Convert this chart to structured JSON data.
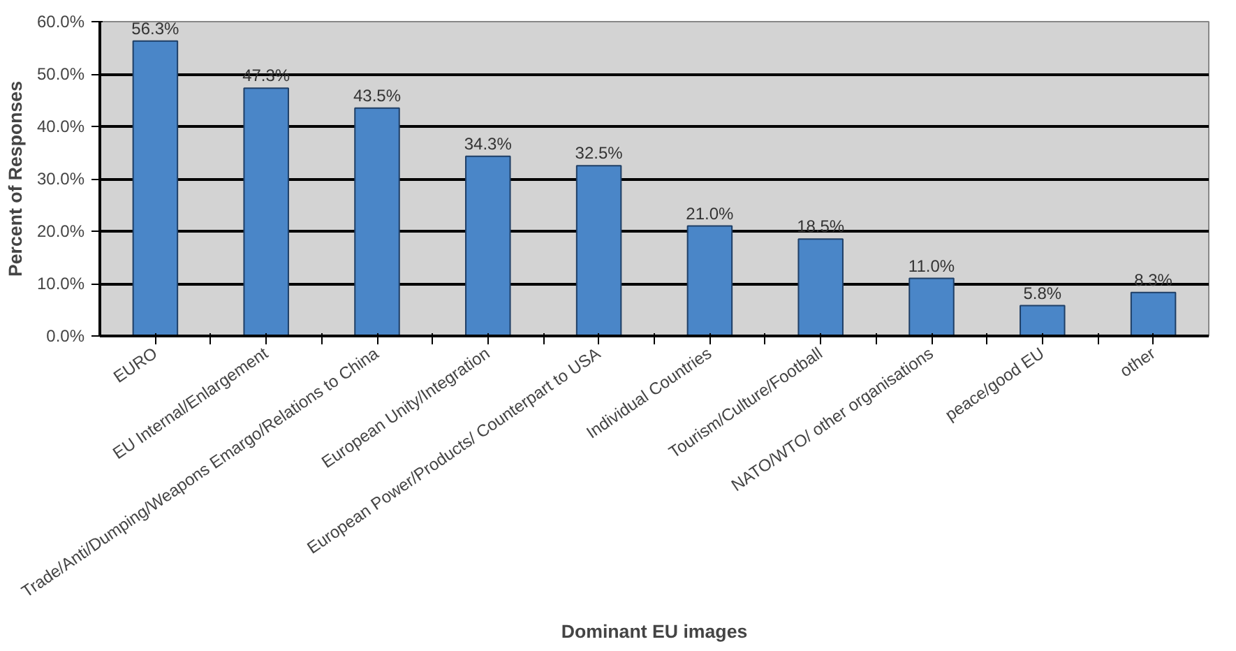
{
  "chart_data": {
    "type": "bar",
    "xlabel": "Dominant EU images",
    "ylabel": "Percent of Responses",
    "categories": [
      "EURO",
      "EU Internal/Enlargement",
      "Trade/Anti/Dumping/Weapons Emargo/Relations to China",
      "European Unity/Integration",
      "European Power/Products/ Counterpart to USA",
      "Individual Countries",
      "Tourism/Culture/Football",
      "NATO/WTO/ other organisations",
      "peace/good EU",
      "other"
    ],
    "values": [
      56.3,
      47.3,
      43.5,
      34.3,
      32.5,
      21.0,
      18.5,
      11.0,
      5.8,
      8.3
    ],
    "value_labels": [
      "56.3%",
      "47.3%",
      "43.5%",
      "34.3%",
      "32.5%",
      "21.0%",
      "18.5%",
      "11.0%",
      "5.8%",
      "8.3%"
    ],
    "color": "#4a86c8",
    "ylim": [
      0,
      60
    ],
    "yticks": [
      {
        "value": 0,
        "label": "0.0%"
      },
      {
        "value": 10,
        "label": "10.0%"
      },
      {
        "value": 20,
        "label": "20.0%"
      },
      {
        "value": 30,
        "label": "30.0%"
      },
      {
        "value": 40,
        "label": "40.0%"
      },
      {
        "value": 50,
        "label": "50.0%"
      },
      {
        "value": 60,
        "label": "60.0%"
      }
    ],
    "grid": "y"
  }
}
